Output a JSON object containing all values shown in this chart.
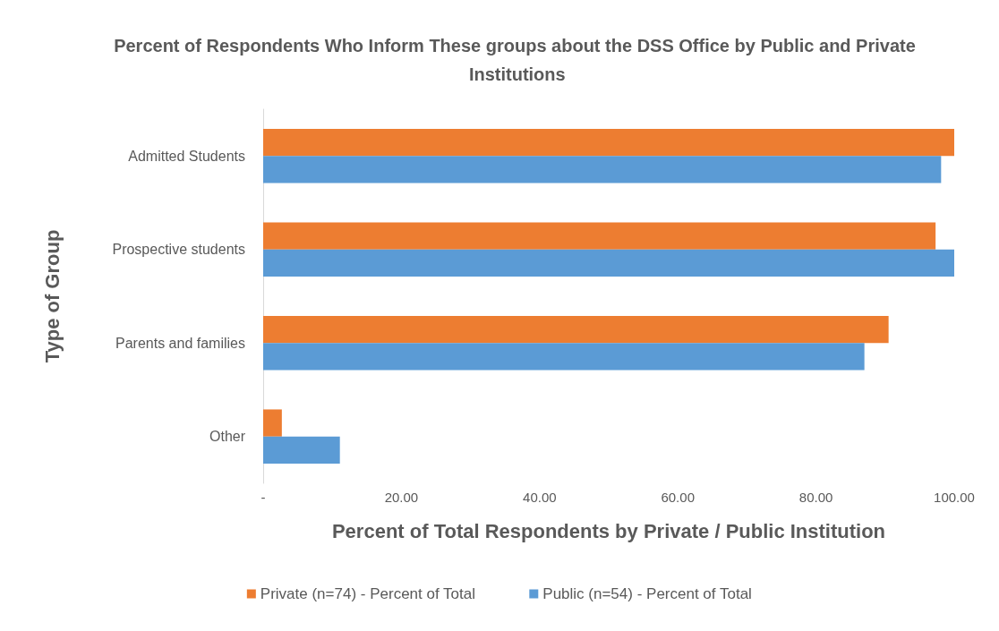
{
  "chart_data": {
    "type": "bar",
    "orientation": "horizontal",
    "title": "Percent of Respondents Who Inform These groups about the DSS Office by Public and Private Institutions",
    "xlabel": "Percent of Total Respondents by Private / Public Institution",
    "ylabel": "Type of Group",
    "categories": [
      "Admitted Students",
      "Prospective students",
      "Parents and families",
      "Other"
    ],
    "series": [
      {
        "name": "Private (n=74) - Percent of Total",
        "color": "#ed7d31",
        "values": [
          100,
          97.3,
          90.5,
          2.7
        ]
      },
      {
        "name": "Public (n=54) - Percent of Total",
        "color": "#5b9bd5",
        "values": [
          98.1,
          100,
          87.0,
          11.1
        ]
      }
    ],
    "xlim": [
      0,
      100
    ],
    "xticks": [
      {
        "value": 0,
        "label": "-"
      },
      {
        "value": 20,
        "label": "20.00"
      },
      {
        "value": 40,
        "label": "40.00"
      },
      {
        "value": 60,
        "label": "60.00"
      },
      {
        "value": 80,
        "label": "80.00"
      },
      {
        "value": 100,
        "label": "100.00"
      }
    ],
    "grid": false,
    "legend": "bottom"
  }
}
